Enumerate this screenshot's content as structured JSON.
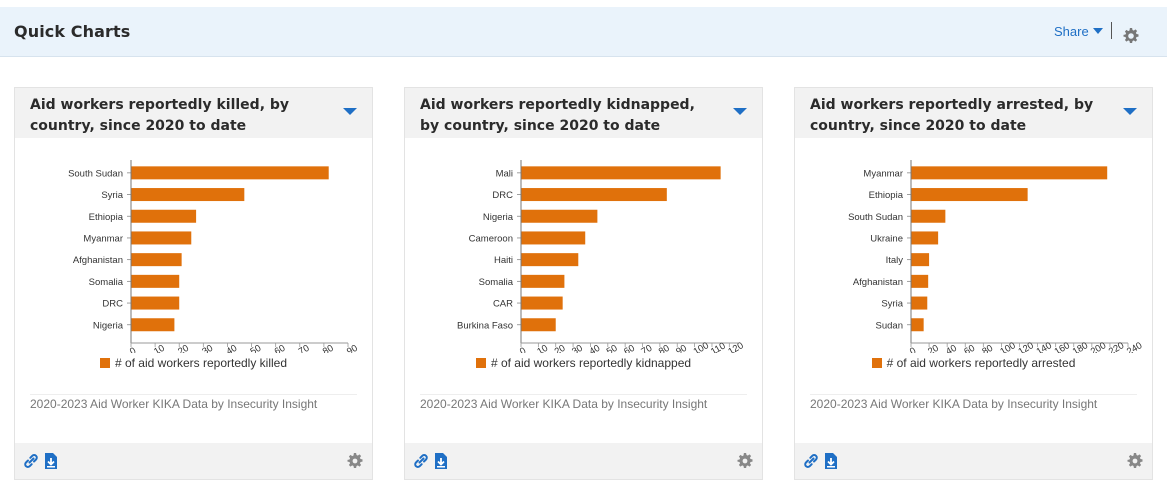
{
  "header": {
    "title": "Quick Charts",
    "share_label": "Share"
  },
  "colors": {
    "bar": "#e0710b",
    "accent": "#1f6fc5"
  },
  "icons": {
    "share_caret": "caret-down-icon",
    "settings": "gear-icon",
    "link": "link-icon",
    "download": "download-icon",
    "card_menu": "caret-down-icon"
  },
  "cards": [
    {
      "title_line1": "Aid workers reportedly killed, by",
      "title_line2": "country, since 2020 to date",
      "legend": "# of aid workers reportedly killed",
      "source": "2020-2023 Aid Worker KIKA Data by Insecurity Insight"
    },
    {
      "title_line1": "Aid workers reportedly kidnapped,",
      "title_line2": "by country, since 2020 to date",
      "legend": "# of aid workers reportedly kidnapped",
      "source": "2020-2023 Aid Worker KIKA Data by Insecurity Insight"
    },
    {
      "title_line1": "Aid workers reportedly arrested, by",
      "title_line2": "country, since 2020 to date",
      "legend": "# of aid workers reportedly arrested",
      "source": "2020-2023 Aid Worker KIKA Data by Insecurity Insight"
    }
  ],
  "chart_data": [
    {
      "type": "bar",
      "orientation": "horizontal",
      "categories": [
        "South Sudan",
        "Syria",
        "Ethiopia",
        "Myanmar",
        "Afghanistan",
        "Somalia",
        "DRC",
        "Nigeria"
      ],
      "values": [
        82,
        47,
        27,
        25,
        21,
        20,
        20,
        18
      ],
      "series": [
        {
          "name": "# of aid workers reportedly killed",
          "values": [
            82,
            47,
            27,
            25,
            21,
            20,
            20,
            18
          ]
        }
      ],
      "ticks": [
        0,
        10,
        20,
        30,
        40,
        50,
        60,
        70,
        80,
        90
      ],
      "xlim": [
        0,
        90
      ],
      "legend_position": "bottom"
    },
    {
      "type": "bar",
      "orientation": "horizontal",
      "categories": [
        "Mali",
        "DRC",
        "Nigeria",
        "Cameroon",
        "Haiti",
        "Somalia",
        "CAR",
        "Burkina Faso"
      ],
      "values": [
        115,
        84,
        44,
        37,
        33,
        25,
        24,
        20
      ],
      "series": [
        {
          "name": "# of aid workers reportedly kidnapped",
          "values": [
            115,
            84,
            44,
            37,
            33,
            25,
            24,
            20
          ]
        }
      ],
      "ticks": [
        0,
        10,
        20,
        30,
        40,
        50,
        60,
        70,
        80,
        90,
        100,
        110,
        120
      ],
      "xlim": [
        0,
        125
      ],
      "legend_position": "bottom"
    },
    {
      "type": "bar",
      "orientation": "horizontal",
      "categories": [
        "Myanmar",
        "Ethiopia",
        "South Sudan",
        "Ukraine",
        "Italy",
        "Afghanistan",
        "Syria",
        "Sudan"
      ],
      "values": [
        217,
        129,
        38,
        30,
        20,
        19,
        18,
        14
      ],
      "series": [
        {
          "name": "# of aid workers reportedly arrested",
          "values": [
            217,
            129,
            38,
            30,
            20,
            19,
            18,
            14
          ]
        }
      ],
      "ticks": [
        0,
        20,
        40,
        60,
        80,
        100,
        120,
        140,
        160,
        180,
        200,
        220,
        240
      ],
      "xlim": [
        0,
        240
      ],
      "legend_position": "bottom"
    }
  ]
}
